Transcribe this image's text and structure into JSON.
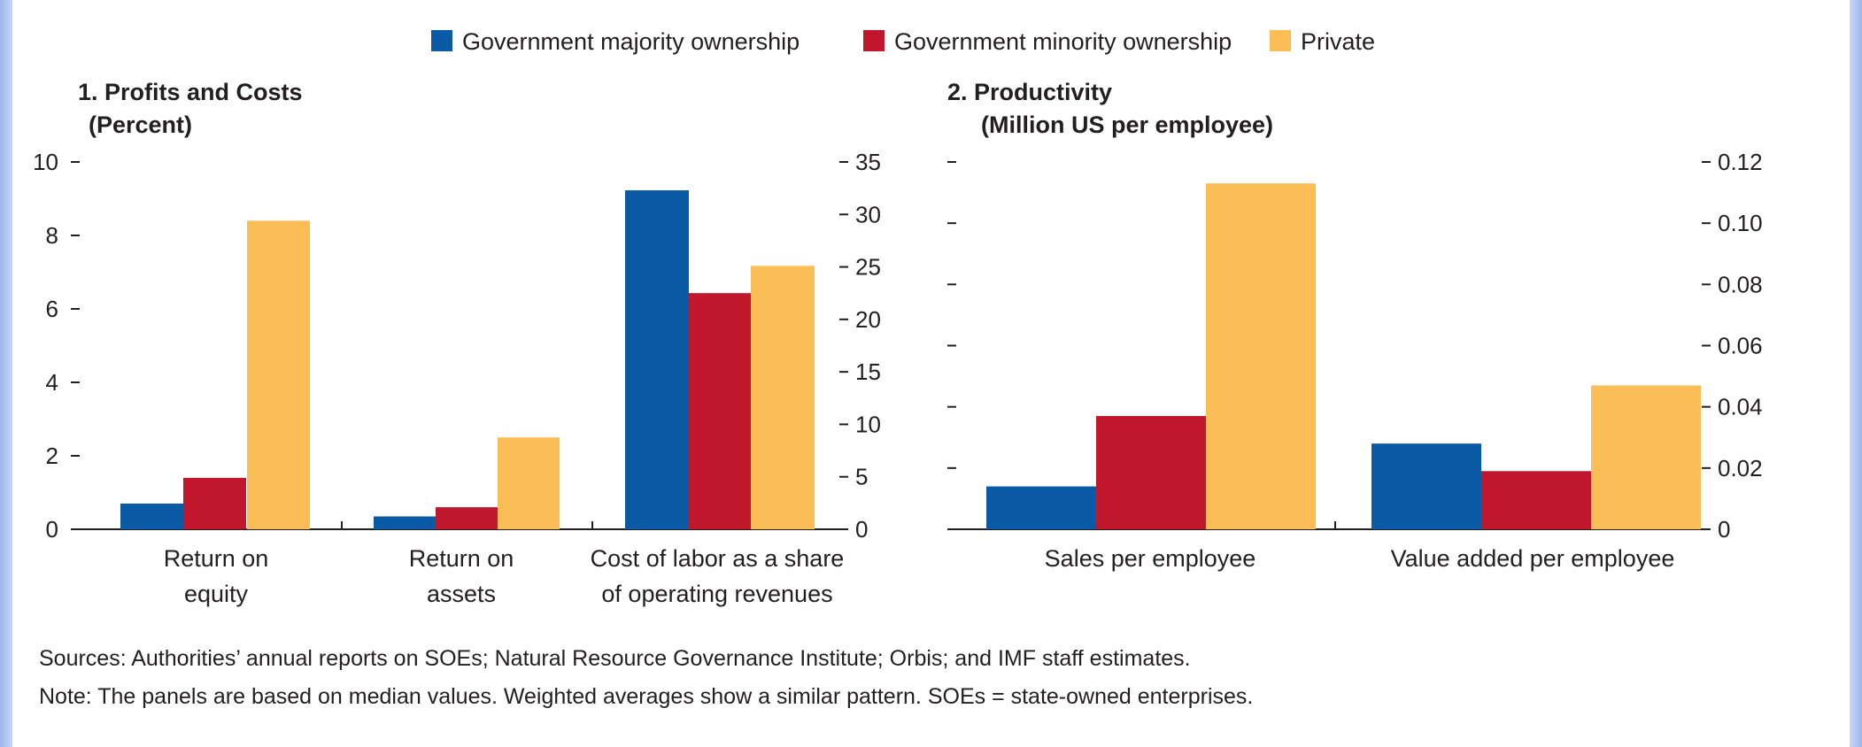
{
  "legend": [
    {
      "label": "Government majority ownership",
      "color": "#0b5aa5"
    },
    {
      "label": "Government minority ownership",
      "color": "#c0172d"
    },
    {
      "label": "Private",
      "color": "#fbbd55"
    }
  ],
  "chart_data": [
    {
      "type": "bar",
      "title": "1. Profits and Costs",
      "subtitle": "(Percent)",
      "left_axis": {
        "ylim": [
          0,
          10
        ],
        "ticks": [
          "0",
          "2",
          "4",
          "6",
          "8",
          "10"
        ]
      },
      "right_axis": {
        "ylim": [
          0,
          35
        ],
        "ticks": [
          "0",
          "5",
          "10",
          "15",
          "20",
          "25",
          "30",
          "35"
        ]
      },
      "categories": [
        {
          "label_lines": [
            "Return on",
            "equity"
          ],
          "axis": "left"
        },
        {
          "label_lines": [
            "Return on",
            "assets"
          ],
          "axis": "left"
        },
        {
          "label_lines": [
            "Cost of labor as a share",
            "of operating revenues"
          ],
          "axis": "right"
        }
      ],
      "series": [
        {
          "name": "Government majority ownership",
          "values": [
            0.7,
            0.35,
            32.3
          ]
        },
        {
          "name": "Government minority ownership",
          "values": [
            1.4,
            0.6,
            22.5
          ]
        },
        {
          "name": "Private",
          "values": [
            8.4,
            2.5,
            25.1
          ]
        }
      ]
    },
    {
      "type": "bar",
      "title": "2. Productivity",
      "subtitle": "(Million US per employee)",
      "left_axis": {
        "ylim": [
          0,
          0.12
        ],
        "ticks": [
          "",
          "",
          "",
          "",
          "",
          "",
          ""
        ]
      },
      "right_axis": {
        "ylim": [
          0,
          0.12
        ],
        "ticks": [
          "0",
          "0.02",
          "0.04",
          "0.06",
          "0.08",
          "0.10",
          "0.12"
        ]
      },
      "categories": [
        {
          "label_lines": [
            "Sales per employee"
          ],
          "axis": "right"
        },
        {
          "label_lines": [
            "Value added per employee"
          ],
          "axis": "right"
        }
      ],
      "series": [
        {
          "name": "Government majority ownership",
          "values": [
            0.014,
            0.028
          ]
        },
        {
          "name": "Government minority ownership",
          "values": [
            0.037,
            0.019
          ]
        },
        {
          "name": "Private",
          "values": [
            0.113,
            0.047
          ]
        }
      ]
    }
  ],
  "notes": {
    "sources": "Sources: Authorities’ annual reports on SOEs; Natural Resource Governance Institute; Orbis; and IMF staff estimates.",
    "note": "Note: The panels are based on median values. Weighted averages show a similar pattern. SOEs = state-owned enterprises."
  }
}
